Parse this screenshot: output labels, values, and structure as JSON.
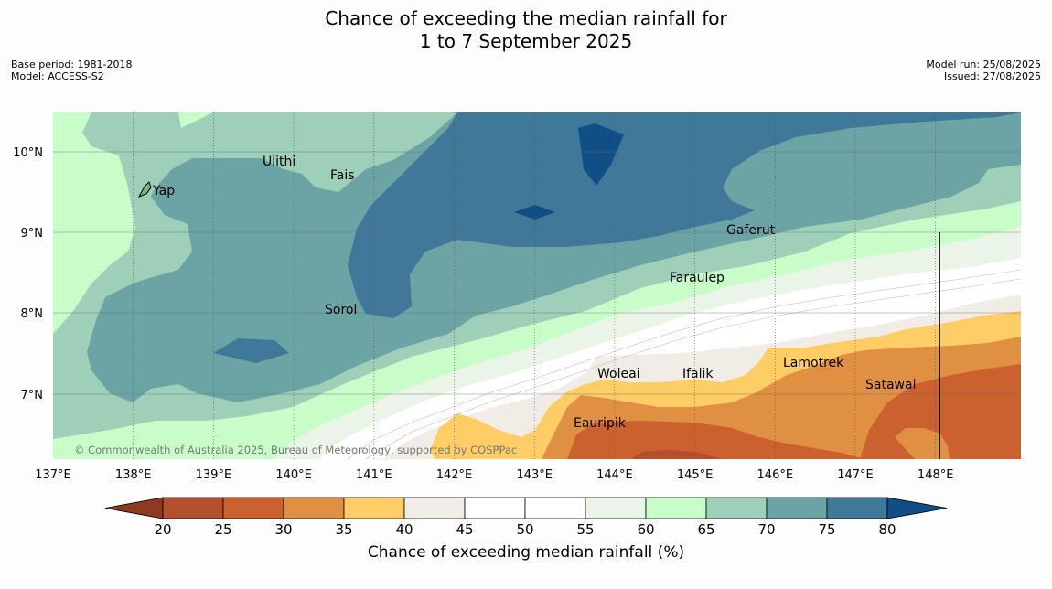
{
  "title": {
    "line1": "Chance of exceeding the median rainfall for",
    "line2": "1 to 7 September 2025"
  },
  "meta": {
    "base_period": "Base period: 1981-2018",
    "model": "Model: ACCESS-S2",
    "model_run": "Model run: 25/08/2025",
    "issued": "Issued: 27/08/2025"
  },
  "map": {
    "lon_labels": [
      "137°E",
      "138°E",
      "139°E",
      "140°E",
      "141°E",
      "142°E",
      "143°E",
      "144°E",
      "145°E",
      "146°E",
      "147°E",
      "148°E"
    ],
    "lat_labels": [
      "10°N",
      "9°N",
      "8°N",
      "7°N"
    ],
    "places": [
      {
        "name": "Ulithi"
      },
      {
        "name": "Fais"
      },
      {
        "name": "Yap"
      },
      {
        "name": "Gaferut"
      },
      {
        "name": "Faraulep"
      },
      {
        "name": "Sorol"
      },
      {
        "name": "Lamotrek"
      },
      {
        "name": "Woleai"
      },
      {
        "name": "Ifalik"
      },
      {
        "name": "Satawal"
      },
      {
        "name": "Eauripik"
      }
    ],
    "copyright": "© Commonwealth of Australia 2025, Bureau of Meteorology, supported by COSPPac"
  },
  "colorbar": {
    "label": "Chance of exceeding median rainfall (%)",
    "ticks": [
      "20",
      "25",
      "30",
      "35",
      "40",
      "45",
      "50",
      "55",
      "60",
      "65",
      "70",
      "75",
      "80"
    ],
    "under_color": "#8e3a22",
    "over_color": "#124e86",
    "colors": [
      "#b24f2c",
      "#cc6130",
      "#e09043",
      "#fecd66",
      "#f1ede6",
      "#ffffff",
      "#ffffff",
      "#eaf5e8",
      "#c8fdca",
      "#9dcfb9",
      "#6ca4a6",
      "#3f7898"
    ]
  }
}
